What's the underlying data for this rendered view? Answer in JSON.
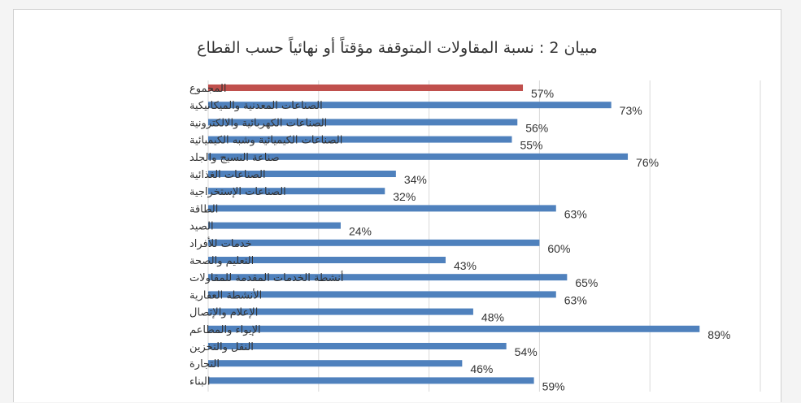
{
  "chart_data": {
    "type": "bar",
    "orientation": "horizontal",
    "title": "مبيان 2 : نسبة المقاولات المتوقفة مؤقتاً أو نهائياً حسب القطاع",
    "categories": [
      "المجموع",
      "الصناعات المعدنية والميكانيكية",
      "الصناعات الكهربائية والالكترونية",
      "الصناعات الكيميائية وشبه الكيميائية",
      "صناعة النسيج والجلد",
      "الصناعات الغذائية",
      "الصناعات الإستخراجية",
      "الطاقة",
      "الصيد",
      "خدمات للأفراد",
      "التعليم والصحة",
      "أنشطة الخدمات المقدمة للمقاولات",
      "الأنشطة العقارية",
      "الإعلام والإتصال",
      "الإيواء والمطاعم",
      "النقل والتخزين",
      "التجارة",
      "البناء"
    ],
    "values": [
      57,
      73,
      56,
      55,
      76,
      34,
      32,
      63,
      24,
      60,
      43,
      65,
      63,
      48,
      89,
      54,
      46,
      59
    ],
    "value_labels": [
      "57%",
      "73%",
      "56%",
      "55%",
      "76%",
      "34%",
      "32%",
      "63%",
      "24%",
      "60%",
      "43%",
      "65%",
      "63%",
      "48%",
      "89%",
      "54%",
      "46%",
      "59%"
    ],
    "xlim": [
      0,
      100
    ],
    "grid": "vertical",
    "legend": "none",
    "colors": {
      "highlight": "#C0504D",
      "default": "#4F81BD",
      "grid": "#d9d9d9"
    },
    "highlight_index": 0
  }
}
